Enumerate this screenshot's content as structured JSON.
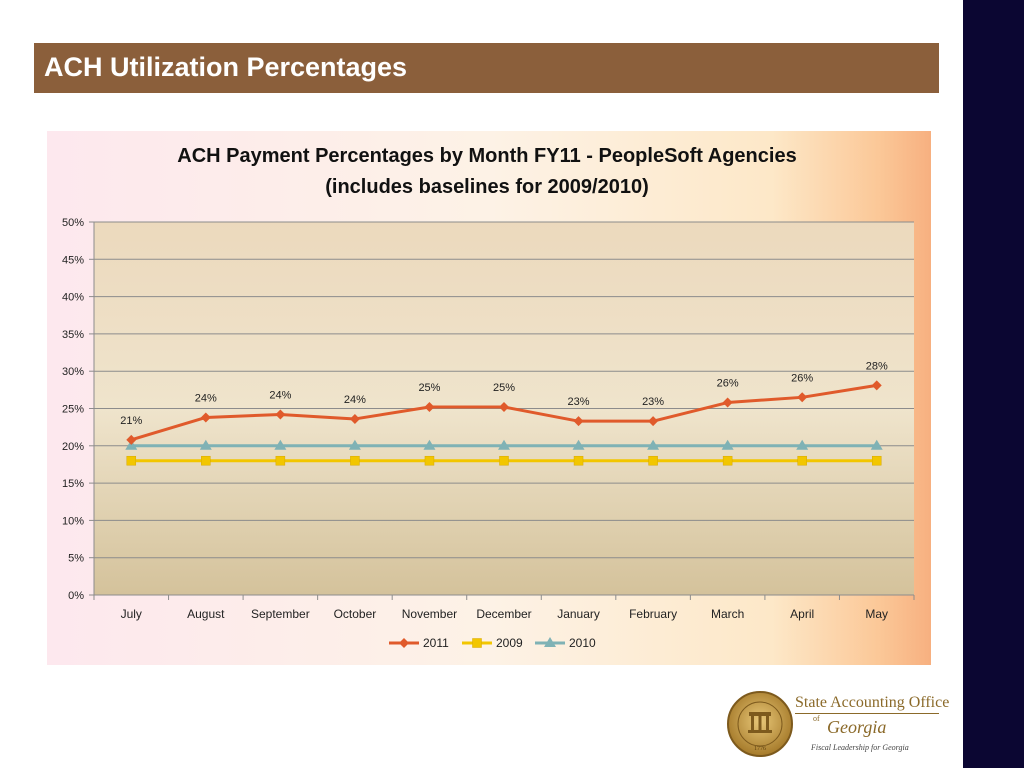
{
  "slide": {
    "title": "ACH Utilization Percentages"
  },
  "colors": {
    "header_bg": "#8b5f3b",
    "sidebar_bg": "#0b0632",
    "series_2011": "#e05a2b",
    "series_2009": "#f2c600",
    "series_2010": "#7fb2b5"
  },
  "chart_data": {
    "type": "line",
    "title": "ACH Payment Percentages by Month FY11  - PeopleSoft Agencies",
    "subtitle": "(includes baselines for 2009/2010)",
    "categories": [
      "July",
      "August",
      "September",
      "October",
      "November",
      "December",
      "January",
      "February",
      "March",
      "April",
      "May"
    ],
    "y_ticks": [
      "0%",
      "5%",
      "10%",
      "15%",
      "20%",
      "25%",
      "30%",
      "35%",
      "40%",
      "45%",
      "50%"
    ],
    "ylim": [
      0,
      0.5
    ],
    "grid": true,
    "legend_position": "bottom",
    "series": [
      {
        "name": "2011",
        "marker": "diamond",
        "values": [
          0.208,
          0.238,
          0.242,
          0.236,
          0.252,
          0.252,
          0.233,
          0.233,
          0.258,
          0.265,
          0.281
        ],
        "labels": [
          "21%",
          "24%",
          "24%",
          "24%",
          "25%",
          "25%",
          "23%",
          "23%",
          "26%",
          "26%",
          "28%"
        ]
      },
      {
        "name": "2009",
        "marker": "square",
        "values": [
          0.18,
          0.18,
          0.18,
          0.18,
          0.18,
          0.18,
          0.18,
          0.18,
          0.18,
          0.18,
          0.18
        ]
      },
      {
        "name": "2010",
        "marker": "triangle",
        "values": [
          0.2,
          0.2,
          0.2,
          0.2,
          0.2,
          0.2,
          0.2,
          0.2,
          0.2,
          0.2,
          0.2
        ]
      }
    ]
  },
  "logo": {
    "line1": "State Accounting Office",
    "line2_small": "of",
    "line3": "Georgia",
    "tagline": "Fiscal Leadership for Georgia",
    "seal_text": "STATE OF GEORGIA",
    "seal_year": "1776"
  }
}
